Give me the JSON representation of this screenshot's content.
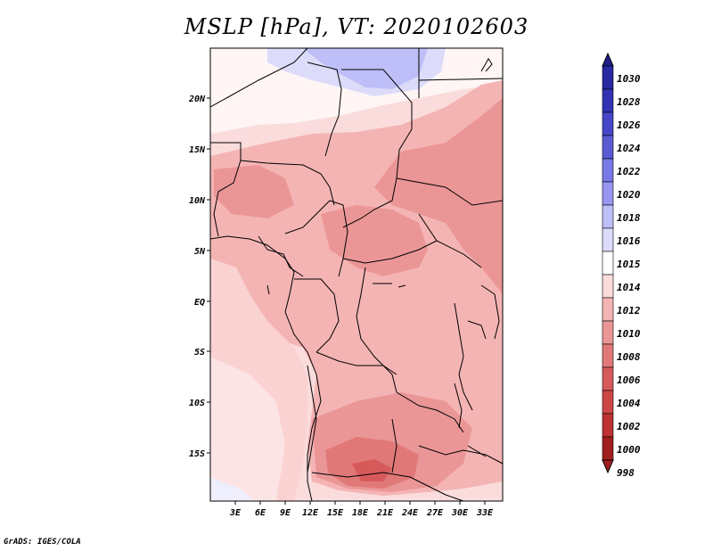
{
  "title": "MSLP [hPa], VT: 2020102603",
  "footer": "GrADS: IGES/COLA",
  "lon_ticks": [
    "3E",
    "6E",
    "9E",
    "12E",
    "15E",
    "18E",
    "21E",
    "24E",
    "27E",
    "30E",
    "33E"
  ],
  "lat_ticks": [
    "20N",
    "15N",
    "10N",
    "5N",
    "EQ",
    "5S",
    "10S",
    "15S"
  ],
  "colorbar": {
    "levels": [
      "1030",
      "1028",
      "1026",
      "1024",
      "1022",
      "1020",
      "1018",
      "1016",
      "1015",
      "1014",
      "1012",
      "1010",
      "1008",
      "1006",
      "1004",
      "1002",
      "1000",
      "998"
    ],
    "colors": [
      "#1e1e8c",
      "#2828a0",
      "#3232b4",
      "#4646c8",
      "#5a5ad2",
      "#7878e6",
      "#9696f0",
      "#bebef8",
      "#dcdcfa",
      "#ffffff",
      "#fadcdc",
      "#f5b4b4",
      "#eb9696",
      "#e17878",
      "#d75a5a",
      "#cd4646",
      "#be3232",
      "#a01e1e"
    ]
  },
  "colors": {
    "ocean_light": "#fde7e7",
    "land_1012": "#fadcdc",
    "land_1010": "#f5b4b4",
    "land_1008": "#eb9696",
    "land_1006": "#e17878",
    "high_1016": "#bebef8",
    "high_1015": "#dcdcfa",
    "high_1014": "#ffffff",
    "border": "#000000"
  }
}
